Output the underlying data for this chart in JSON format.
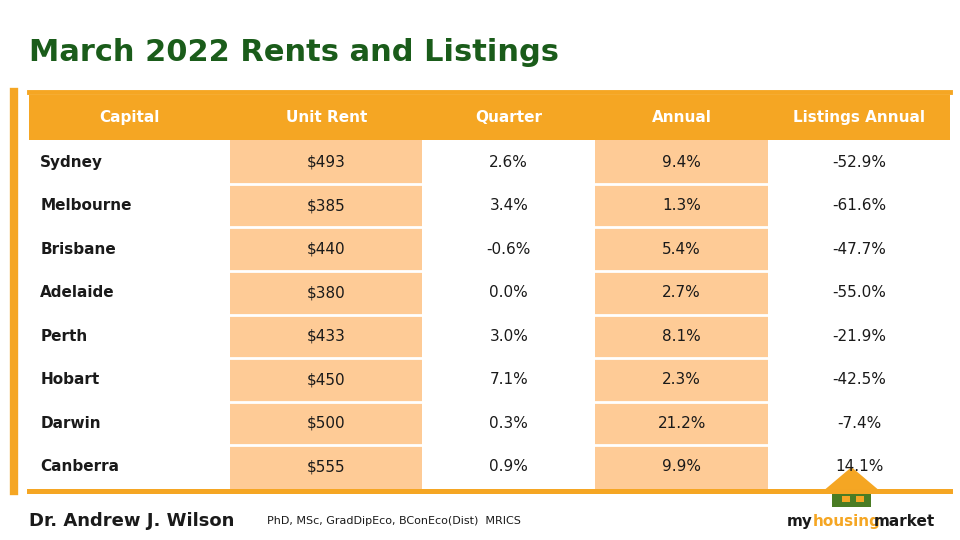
{
  "title": "March 2022 Rents and Listings",
  "title_color": "#1a5c1a",
  "title_fontsize": 22,
  "header_bg": "#F5A623",
  "header_text_color": "#ffffff",
  "header_labels": [
    "Capital",
    "Unit Rent",
    "Quarter",
    "Annual",
    "Listings Annual"
  ],
  "col_highlights": [
    false,
    true,
    false,
    true,
    false
  ],
  "row_data": [
    [
      "Sydney",
      "$493",
      "2.6%",
      "9.4%",
      "-52.9%"
    ],
    [
      "Melbourne",
      "$385",
      "3.4%",
      "1.3%",
      "-61.6%"
    ],
    [
      "Brisbane",
      "$440",
      "-0.6%",
      "5.4%",
      "-47.7%"
    ],
    [
      "Adelaide",
      "$380",
      "0.0%",
      "2.7%",
      "-55.0%"
    ],
    [
      "Perth",
      "$433",
      "3.0%",
      "8.1%",
      "-21.9%"
    ],
    [
      "Hobart",
      "$450",
      "7.1%",
      "2.3%",
      "-42.5%"
    ],
    [
      "Darwin",
      "$500",
      "0.3%",
      "21.2%",
      "-7.4%"
    ],
    [
      "Canberra",
      "$555",
      "0.9%",
      "9.9%",
      "14.1%"
    ]
  ],
  "cell_highlight_color": "#FECB96",
  "cell_normal_color": "#FFFFFF",
  "footer_name_bold": "Dr. Andrew J. Wilson",
  "footer_name_regular": "PhD, MSc, GradDipEco, BConEco(Dist)  MRICS",
  "bg_color": "#FFFFFF",
  "orange_line_color": "#F5A623",
  "left_border_color": "#F5A623",
  "divider_color": "#FFFFFF"
}
